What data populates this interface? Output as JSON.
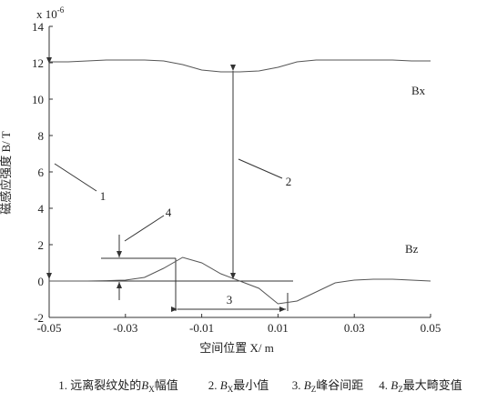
{
  "chart_data": {
    "type": "line",
    "y_label": "磁感应强度 B/ T",
    "x_label": "空间位置 X/ m",
    "multiplier": {
      "base": "x 10",
      "exp": "-6"
    },
    "x": [
      -0.05,
      -0.045,
      -0.04,
      -0.035,
      -0.03,
      -0.025,
      -0.02,
      -0.015,
      -0.01,
      -0.005,
      0,
      0.005,
      0.01,
      0.015,
      0.02,
      0.025,
      0.03,
      0.035,
      0.04,
      0.045,
      0.05
    ],
    "series": [
      {
        "name": "Bx",
        "color": "#555555",
        "values": [
          12.05,
          12.05,
          12.1,
          12.15,
          12.15,
          12.15,
          12.1,
          11.9,
          11.6,
          11.5,
          11.5,
          11.55,
          11.75,
          12.05,
          12.15,
          12.15,
          12.15,
          12.15,
          12.15,
          12.1,
          12.1
        ]
      },
      {
        "name": "Bz",
        "color": "#555555",
        "values": [
          0,
          0,
          0,
          0.02,
          0.05,
          0.2,
          0.7,
          1.3,
          1.0,
          0.4,
          0,
          -0.4,
          -1.25,
          -1.1,
          -0.6,
          -0.1,
          0.05,
          0.1,
          0.1,
          0.05,
          0
        ]
      }
    ],
    "xlim": [
      -0.05,
      0.05
    ],
    "xticks": [
      -0.05,
      -0.03,
      -0.01,
      0.01,
      0.03,
      0.05
    ],
    "ylim": [
      -2,
      14
    ],
    "yticks": [
      -2,
      0,
      2,
      4,
      6,
      8,
      10,
      12,
      14
    ],
    "annotations": [
      "1",
      "2",
      "3",
      "4"
    ],
    "captions": [
      {
        "pre": "1. 远离裂纹处的",
        "var": "B",
        "sub": "X",
        "post": "幅值"
      },
      {
        "pre": "2. ",
        "var": "B",
        "sub": "X",
        "post": "最小值"
      },
      {
        "pre": "3. ",
        "var": "B",
        "sub": "Z",
        "post": "峰谷间距"
      },
      {
        "pre": "4. ",
        "var": "B",
        "sub": "Z",
        "post": "最大畸变值"
      }
    ]
  }
}
